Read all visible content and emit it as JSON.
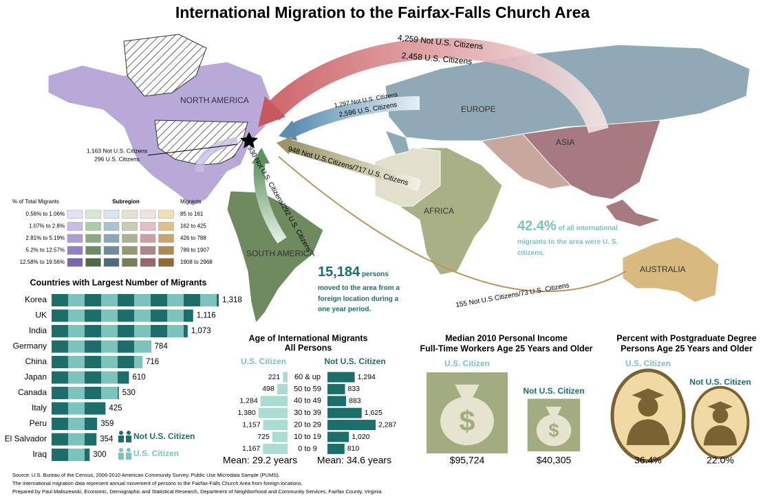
{
  "title": "International Migration to the Fairfax-Falls Church Area",
  "map": {
    "regions": [
      "NORTH AMERICA",
      "EUROPE",
      "ASIA",
      "AFRICA",
      "SOUTH AMERICA",
      "AUSTRALIA"
    ],
    "flows": [
      "4,259 Not U.S. Citizens",
      "2,458 U.S. Citizens",
      "1,297 Not U.S. Citizens",
      "2,596 U.S. Citizens",
      "948 Not U.S.Citizens/717 U.S. Citizens",
      "930 Not U.S. Citizens/292 U.S. Citizens",
      "155 Not U.S Citizens/73 U.S. Citizens",
      "1,163 Not U.S. Citizens",
      "296 U.S. Citizens"
    ]
  },
  "stats": {
    "share": "42.4%",
    "share_text": "of all international migrants to the area were U. S. citizens.",
    "total": "15,184",
    "total_text": "persons moved to the area from a foreign location during a one year period."
  },
  "legend_table": {
    "headers": [
      "% of Total Migrants",
      "Subregion",
      "Migrants"
    ],
    "rows": [
      {
        "pct": "0.56% to 1.06%",
        "migrants": "85 to 161",
        "colors": [
          "#e6e0f2",
          "#d9e8d6",
          "#d7e6ee",
          "#e2e4d3",
          "#f2e2e2",
          "#f2dfb4"
        ]
      },
      {
        "pct": "1.07% to 2.8%",
        "migrants": "162 to 425",
        "colors": [
          "#c9bde3",
          "#aacca3",
          "#a9c4d1",
          "#c9cdb0",
          "#e0c0c0",
          "#dfc08c"
        ]
      },
      {
        "pct": "2.81% to 5.19%",
        "migrants": "426 to 788",
        "colors": [
          "#ad9ed2",
          "#8aab82",
          "#88a9b7",
          "#aeb290",
          "#c9a0a3",
          "#c9a46e"
        ]
      },
      {
        "pct": "5.2% to 12.57%",
        "migrants": "789 to 1907",
        "colors": [
          "#9380c0",
          "#6d8b66",
          "#6b8c9b",
          "#959873",
          "#b18488",
          "#b08952"
        ]
      },
      {
        "pct": "12.58% to 19.56%",
        "migrants": "1908 to 2968",
        "colors": [
          "#7a66ad",
          "#4f6a4a",
          "#4c6b79",
          "#7a7d58",
          "#98666b",
          "#8f6a35"
        ]
      }
    ]
  },
  "chart_data": [
    {
      "type": "hbar",
      "title": "Countries with Largest Number of Migrants",
      "categories": [
        "Korea",
        "UK",
        "India",
        "Germany",
        "China",
        "Japan",
        "Canada",
        "Italy",
        "Peru",
        "El Salvador",
        "Iraq"
      ],
      "values": [
        1318,
        1116,
        1073,
        784,
        716,
        610,
        530,
        425,
        359,
        354,
        300
      ],
      "value_labels": [
        "1,318",
        "1,116",
        "1,073",
        "784",
        "716",
        "610",
        "530",
        "425",
        "359",
        "354",
        "300"
      ],
      "legend": [
        {
          "name": "Not U.S. Citizen",
          "color": "#1b6e6a"
        },
        {
          "name": "U.S. Citizen",
          "color": "#7cc3bd"
        }
      ]
    },
    {
      "type": "pyramid",
      "title": "Age of International Migrants",
      "subtitle": "All Persons",
      "categories": [
        "60 & up",
        "50 to 59",
        "40 to 49",
        "30 to 39",
        "20 to 29",
        "10 to 19",
        "0 to 9"
      ],
      "series": [
        {
          "name": "U.S. Citizen",
          "color": "#a9ddd4",
          "values": [
            221,
            498,
            1284,
            1380,
            1157,
            725,
            1167
          ],
          "value_labels": [
            "221",
            "498",
            "1,284",
            "1,380",
            "1,157",
            "725",
            "1,167"
          ]
        },
        {
          "name": "Not U.S. Citizen",
          "color": "#1b6e6a",
          "values": [
            1294,
            833,
            883,
            1625,
            2287,
            1020,
            810
          ],
          "value_labels": [
            "1,294",
            "833",
            "883",
            "1,625",
            "2,287",
            "1,020",
            "810"
          ]
        }
      ],
      "annotations": [
        "Mean: 29.2 years",
        "Mean: 34.6 years"
      ]
    },
    {
      "type": "bag",
      "title": "Median 2010 Personal Income",
      "subtitle": "Full-Time Workers Age 25 Years and Older",
      "categories": [
        "U.S. Citizen",
        "Not U.S. Citizen"
      ],
      "colors": [
        "#7cc3bd",
        "#1b6e6a"
      ],
      "values": [
        95724,
        40305
      ],
      "value_labels": [
        "$95,724",
        "$40,305"
      ]
    },
    {
      "type": "medal",
      "title": "Percent with Postgraduate Degree",
      "subtitle": "Persons Age 25 Years and Older",
      "categories": [
        "U.S. Citizen",
        "Not U.S. Citizen"
      ],
      "colors": [
        "#7cc3bd",
        "#1b6e6a"
      ],
      "values": [
        36.4,
        22.0
      ],
      "value_labels": [
        "36.4%",
        "22.0%"
      ]
    }
  ],
  "source": [
    "Source: U.S. Bureau of the Census, 2006-2010 American Community Survey, Public Use Microdata Sample (PUMS).",
    "The international migration data represent annual movement of persons to the Fairfax-Falls Church Area from foreign locations.",
    "Prepared by Paul Maliszewski, Economic, Demographic and Statistical Research, Department of Neighborhood and Community Services, Fairfax County, Virginia"
  ]
}
